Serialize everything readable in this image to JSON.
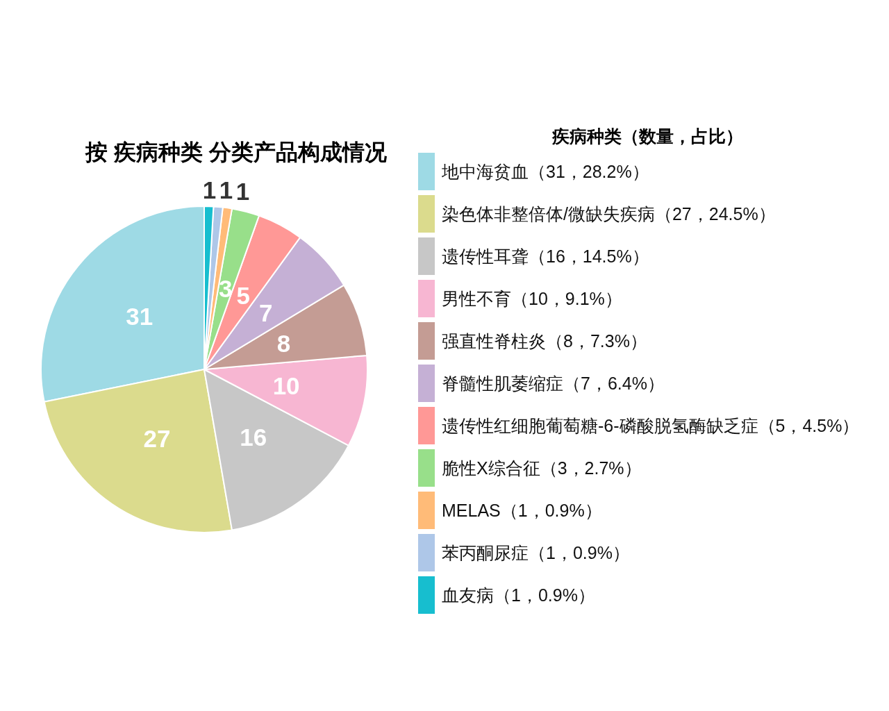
{
  "chart_data": {
    "type": "pie",
    "title": "按 疾病种类 分类产品构成情况",
    "legend_title": "疾病种类（数量，占比）",
    "categories": [
      "地中海贫血（31，28.2%）",
      "染色体非整倍体/微缺失疾病（27，24.5%）",
      "遗传性耳聋（16，14.5%）",
      "男性不育（10，9.1%）",
      "强直性脊柱炎（8，7.3%）",
      "脊髓性肌萎缩症（7，6.4%）",
      "遗传性红细胞葡萄糖-6-磷酸脱氢酶缺乏症（5，4.5%）",
      "脆性X综合征（3，2.7%）",
      "MELAS（1，0.9%）",
      "苯丙酮尿症（1，0.9%）",
      "血友病（1，0.9%）"
    ],
    "values": [
      31,
      27,
      16,
      10,
      8,
      7,
      5,
      3,
      1,
      1,
      1
    ],
    "colors": [
      "#9edae5",
      "#dbdb8d",
      "#c7c7c7",
      "#f7b6d2",
      "#c49c94",
      "#c5b0d5",
      "#ff9896",
      "#98df8a",
      "#ffbb78",
      "#aec7e8",
      "#17becf"
    ],
    "data_labels": true,
    "legend": "right"
  }
}
